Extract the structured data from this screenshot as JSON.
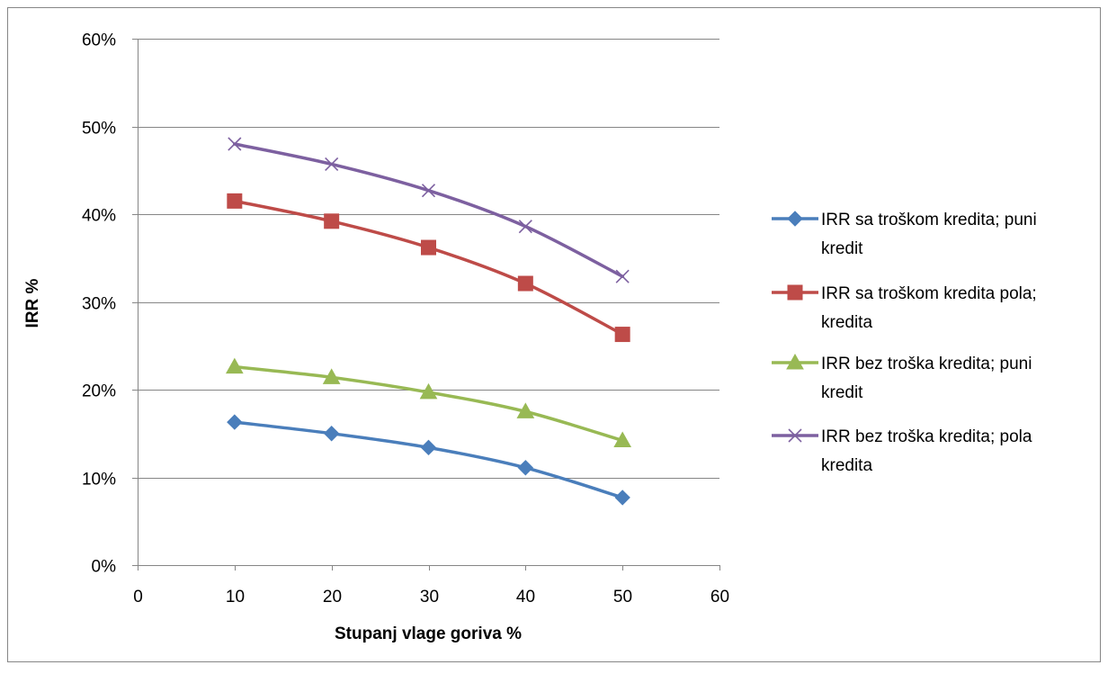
{
  "chart_data": {
    "type": "line",
    "xlabel": "Stupanj vlage goriva %",
    "ylabel": "IRR %",
    "xlim": [
      0,
      60
    ],
    "ylim": [
      0,
      0.6
    ],
    "x_ticks": [
      0,
      10,
      20,
      30,
      40,
      50,
      60
    ],
    "x_tick_labels": [
      "0",
      "10",
      "20",
      "30",
      "40",
      "50",
      "60"
    ],
    "y_ticks": [
      0,
      0.1,
      0.2,
      0.3,
      0.4,
      0.5,
      0.6
    ],
    "y_tick_labels": [
      "0%",
      "10%",
      "20%",
      "30%",
      "40%",
      "50%",
      "60%"
    ],
    "grid": "horizontal",
    "legend_position": "right",
    "x": [
      10,
      20,
      30,
      40,
      50
    ],
    "series": [
      {
        "name": "IRR sa troškom kredita; puni kredit",
        "legend_lines": [
          "IRR sa troškom kredita; puni",
          "kredit"
        ],
        "color": "#4a7ebb",
        "marker": "diamond",
        "values": [
          0.163,
          0.15,
          0.134,
          0.111,
          0.077
        ]
      },
      {
        "name": "IRR sa troškom kredita pola; kredita",
        "legend_lines": [
          "IRR sa troškom kredita pola;",
          "kredita"
        ],
        "color": "#be4b48",
        "marker": "square",
        "values": [
          0.415,
          0.392,
          0.362,
          0.321,
          0.263
        ]
      },
      {
        "name": "IRR bez troška kredita; puni kredit",
        "legend_lines": [
          "IRR bez troška kredita; puni",
          "kredit"
        ],
        "color": "#98b954",
        "marker": "triangle",
        "values": [
          0.226,
          0.214,
          0.197,
          0.175,
          0.142
        ]
      },
      {
        "name": "IRR bez troška kredita; pola kredita",
        "legend_lines": [
          "IRR bez troška kredita; pola",
          "kredita"
        ],
        "color": "#7d60a0",
        "marker": "x",
        "values": [
          0.48,
          0.457,
          0.427,
          0.386,
          0.329
        ]
      }
    ]
  }
}
